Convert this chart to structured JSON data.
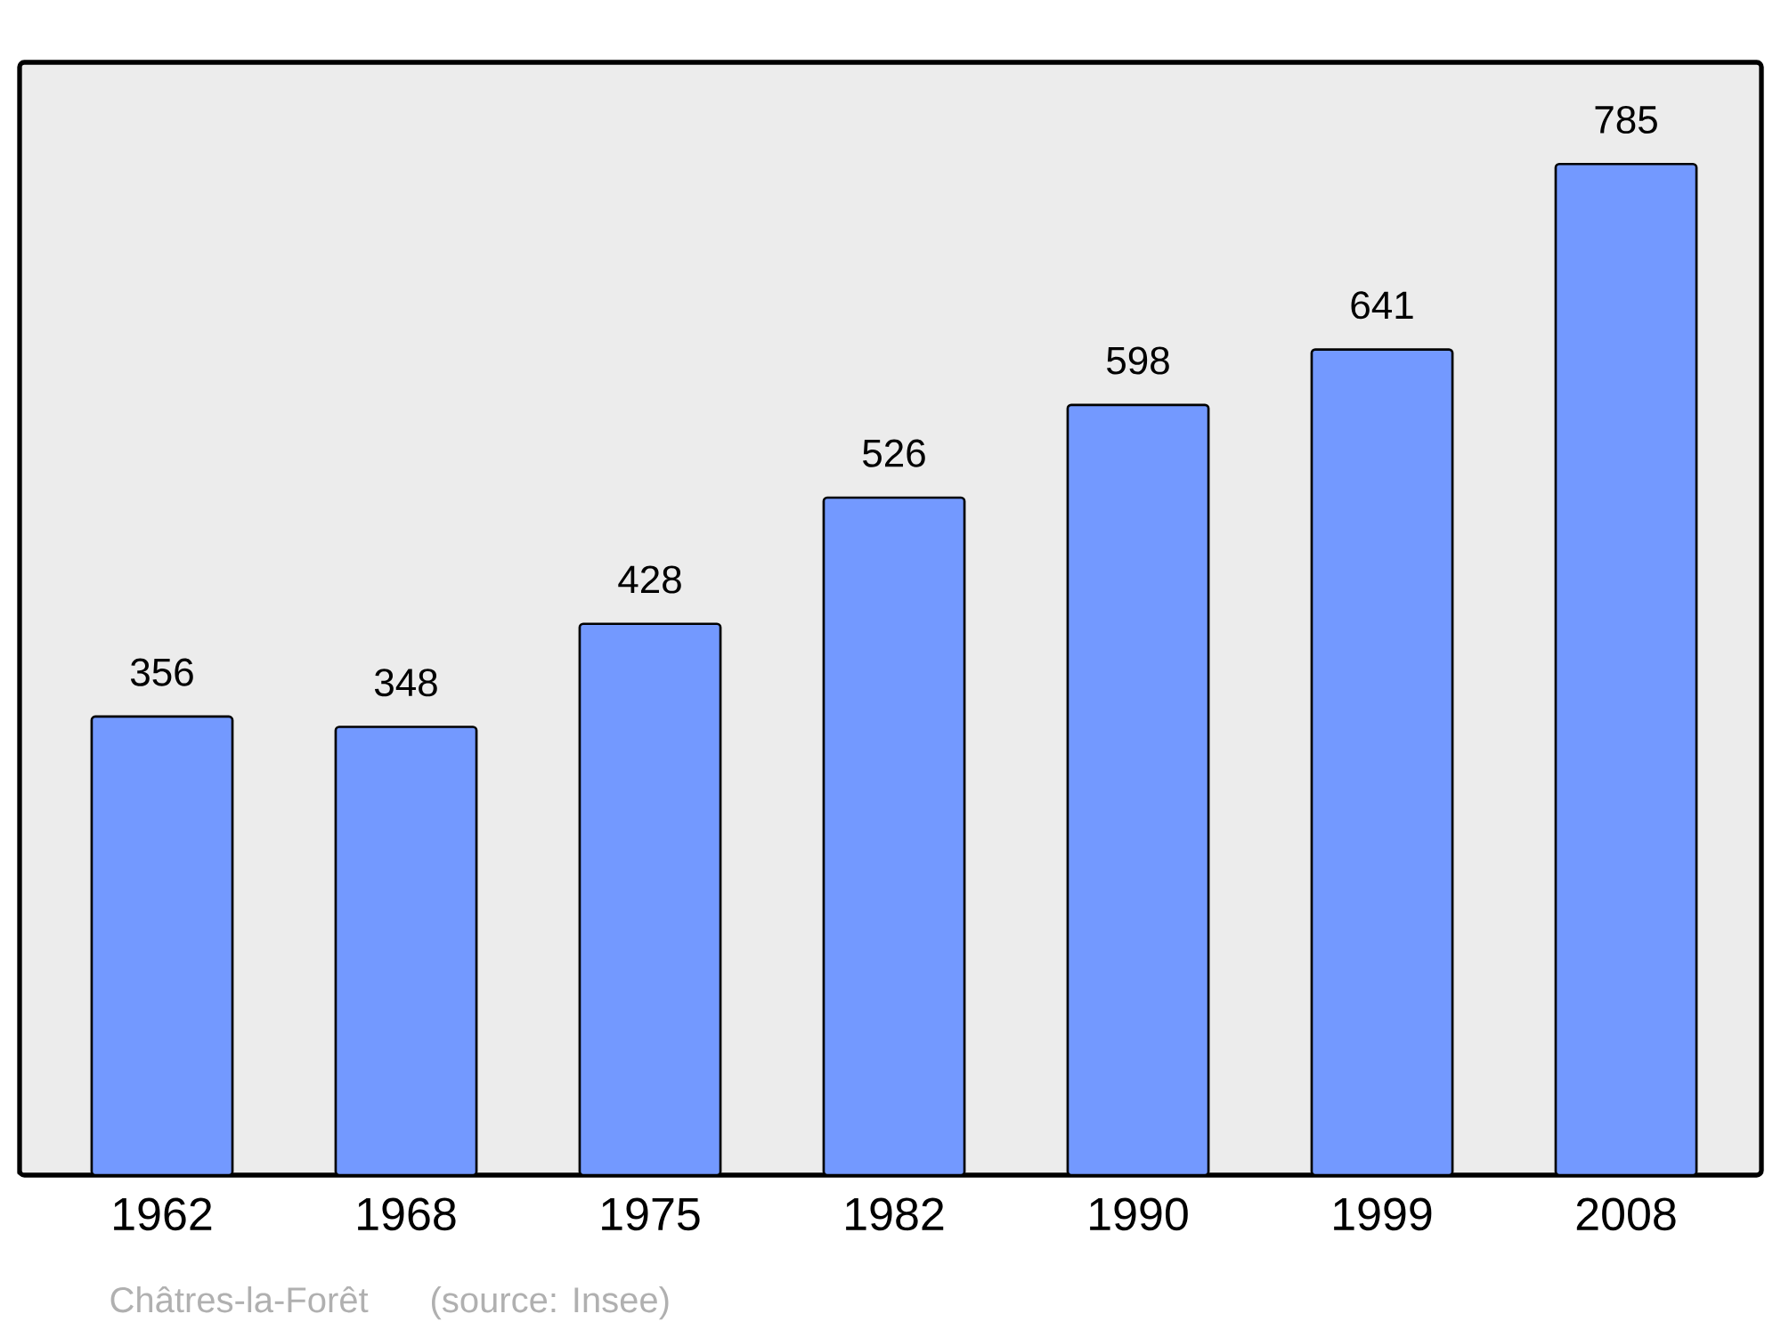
{
  "chart_data": {
    "type": "bar",
    "categories": [
      "1962",
      "1968",
      "1975",
      "1982",
      "1990",
      "1999",
      "2008"
    ],
    "values": [
      356,
      348,
      428,
      526,
      598,
      641,
      785
    ],
    "color": "#7399ff",
    "ylim": [
      0,
      864
    ],
    "data_labels": true,
    "annotations": [
      "Châtres-la-Forêt",
      "(source: Insee)"
    ]
  }
}
